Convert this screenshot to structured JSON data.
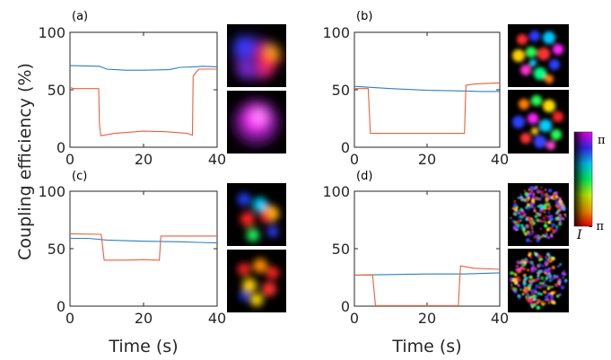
{
  "figure": {
    "ylabel": "Coupling efficiency (%)",
    "xlabel": "Time (s)",
    "colorbar": {
      "top_label": "π",
      "bottom_label": "- π",
      "intensity_label": "I"
    }
  },
  "chart_data": [
    {
      "panel": "(a)",
      "type": "line",
      "xlim": [
        0,
        40
      ],
      "ylim": [
        0,
        100
      ],
      "xticks": [
        "0",
        "20",
        "40"
      ],
      "yticks": [
        "0",
        "50",
        "100"
      ],
      "series": [
        {
          "color": "#2f7fc1",
          "x": [
            0,
            8,
            10,
            15,
            20,
            27,
            30,
            34,
            36,
            40
          ],
          "values": [
            71,
            70.5,
            68,
            67,
            67,
            67.5,
            69.5,
            70,
            70.5,
            70
          ]
        },
        {
          "color": "#e8603c",
          "x": [
            0,
            1,
            7.8,
            8,
            8.4,
            12,
            20,
            26,
            32,
            33.3,
            33.5,
            35,
            40
          ],
          "values": [
            52,
            51,
            51,
            20,
            10,
            12,
            14,
            13.5,
            12,
            10.5,
            62,
            68,
            68
          ]
        }
      ]
    },
    {
      "panel": "(b)",
      "type": "line",
      "xlim": [
        0,
        40
      ],
      "ylim": [
        0,
        100
      ],
      "xticks": [
        "0",
        "20",
        "40"
      ],
      "yticks": [
        "0",
        "50",
        "100"
      ],
      "series": [
        {
          "color": "#2f7fc1",
          "x": [
            0,
            5,
            10,
            20,
            30,
            35,
            40
          ],
          "values": [
            53,
            52,
            51,
            49.5,
            49,
            48.5,
            48.5
          ]
        },
        {
          "color": "#e8603c",
          "x": [
            0,
            3.8,
            4.4,
            10,
            20,
            30.3,
            30.7,
            33,
            40
          ],
          "values": [
            51,
            51,
            12,
            12,
            12,
            12,
            54,
            55,
            56
          ]
        }
      ]
    },
    {
      "panel": "(c)",
      "type": "line",
      "xlim": [
        0,
        40
      ],
      "ylim": [
        0,
        100
      ],
      "xticks": [
        "0",
        "20",
        "40"
      ],
      "yticks": [
        "0",
        "50",
        "100"
      ],
      "series": [
        {
          "color": "#2f7fc1",
          "x": [
            0,
            5,
            10,
            20,
            30,
            35,
            40
          ],
          "values": [
            59,
            59,
            57.5,
            56.5,
            56,
            55.5,
            55
          ]
        },
        {
          "color": "#e8603c",
          "x": [
            0,
            8.5,
            9.3,
            15,
            20,
            24.3,
            24.7,
            30,
            40
          ],
          "values": [
            63,
            62.5,
            40,
            40,
            40.5,
            40,
            61,
            61,
            61
          ]
        }
      ]
    },
    {
      "panel": "(d)",
      "type": "line",
      "xlim": [
        0,
        40
      ],
      "ylim": [
        0,
        100
      ],
      "xticks": [
        "0",
        "20",
        "40"
      ],
      "yticks": [
        "0",
        "50",
        "100"
      ],
      "series": [
        {
          "color": "#2f7fc1",
          "x": [
            0,
            10,
            20,
            30,
            40
          ],
          "values": [
            27,
            27.5,
            28,
            28,
            29
          ]
        },
        {
          "color": "#e8603c",
          "x": [
            0,
            5,
            5.8,
            15,
            28.6,
            29.2,
            33,
            40
          ],
          "values": [
            27,
            27,
            0.5,
            0.5,
            0.5,
            35,
            33,
            32
          ]
        }
      ]
    }
  ]
}
